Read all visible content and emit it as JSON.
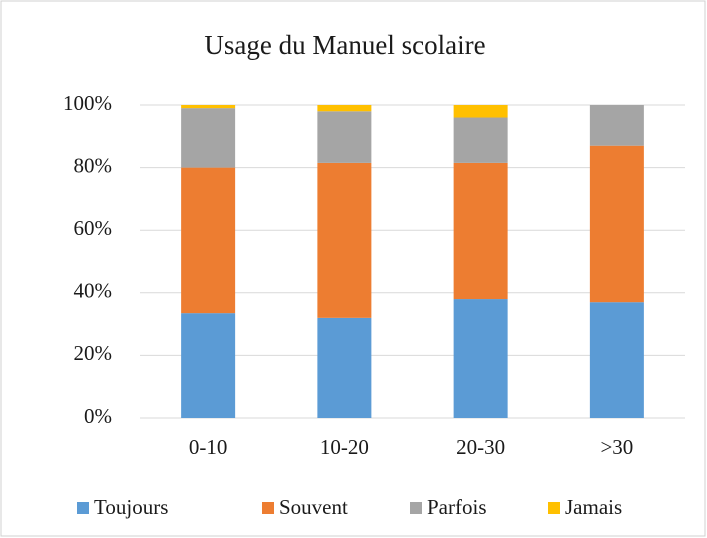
{
  "chart_data": {
    "type": "bar",
    "stacked": true,
    "title": "Usage du Manuel scolaire",
    "categories": [
      "0-10",
      "10-20",
      "20-30",
      ">30"
    ],
    "series": [
      {
        "name": "Toujours",
        "color": "#5b9bd5",
        "values": [
          33.5,
          32,
          38,
          37
        ]
      },
      {
        "name": "Souvent",
        "color": "#ed7d31",
        "values": [
          46.5,
          49.5,
          43.5,
          50
        ]
      },
      {
        "name": "Parfois",
        "color": "#a5a5a5",
        "values": [
          19,
          16.5,
          14.5,
          13
        ]
      },
      {
        "name": "Jamais",
        "color": "#ffc000",
        "values": [
          1,
          2,
          4,
          0
        ]
      }
    ],
    "ylim": [
      0,
      100
    ],
    "yticks": [
      {
        "value": 0,
        "label": "0%"
      },
      {
        "value": 20,
        "label": "20%"
      },
      {
        "value": 40,
        "label": "40%"
      },
      {
        "value": 60,
        "label": "60%"
      },
      {
        "value": 80,
        "label": "80%"
      },
      {
        "value": 100,
        "label": "100%"
      }
    ],
    "grid": true,
    "legend": "bottom"
  }
}
